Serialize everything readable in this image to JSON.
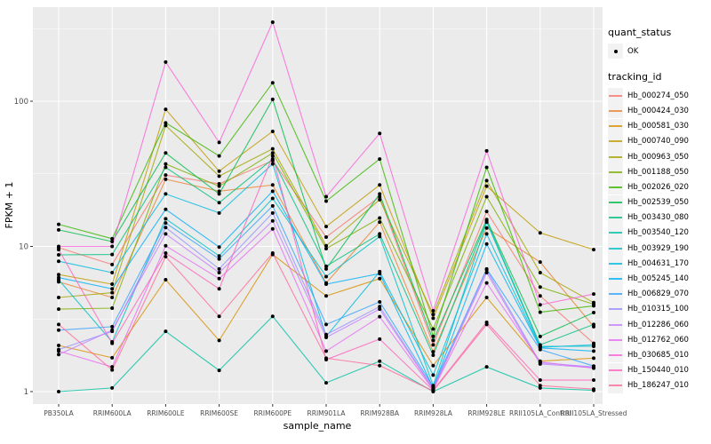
{
  "chart_data": {
    "type": "line",
    "xlabel": "sample_name",
    "ylabel": "FPKM + 1",
    "yscale": "log10",
    "yticks": [
      1,
      10,
      100
    ],
    "ytick_labels": [
      "1",
      "10",
      "100"
    ],
    "yminor": [
      3.162,
      31.62,
      316.2
    ],
    "ylim": [
      0.82,
      450
    ],
    "grid": true,
    "panel_bg": "#EBEBEB",
    "grid_color": "#FFFFFF",
    "point_color": "#000000",
    "point_label": "OK",
    "legend_position": "right",
    "categories": [
      "PB350LA",
      "RRIM600LA",
      "RRIM600LE",
      "RRIM600SE",
      "RRIM600PE",
      "RRIM901LA",
      "RRIM928BA",
      "RRIM928LA",
      "RRIM928LE",
      "RRII105LA_Control",
      "RRII105LA_Stressed"
    ],
    "series": [
      {
        "name": "Hb_000274_050",
        "color": "#F8766D",
        "values": [
          9.8,
          7.5,
          31,
          27,
          39,
          11.6,
          22,
          2.1,
          17.4,
          4.56,
          2.15
        ]
      },
      {
        "name": "Hb_000424_030",
        "color": "#EA8331",
        "values": [
          5.7,
          4.45,
          29,
          24,
          26.5,
          5.6,
          14.7,
          1.88,
          13.4,
          7.8,
          2.8
        ]
      },
      {
        "name": "Hb_000581_030",
        "color": "#D89000",
        "values": [
          2.08,
          1.71,
          5.9,
          2.25,
          8.8,
          4.56,
          6.0,
          1.51,
          4.45,
          1.62,
          1.7
        ]
      },
      {
        "name": "Hb_000740_090",
        "color": "#C09B00",
        "values": [
          6.4,
          5.5,
          88,
          33,
          62,
          13.7,
          26.5,
          3.2,
          26,
          12.4,
          9.5
        ]
      },
      {
        "name": "Hb_000963_050",
        "color": "#A3A500",
        "values": [
          4.45,
          4.8,
          68,
          30.5,
          47,
          10.1,
          21,
          3.4,
          28.4,
          6.6,
          4.1
        ]
      },
      {
        "name": "Hb_001188_050",
        "color": "#7CAE00",
        "values": [
          3.7,
          3.76,
          37,
          26,
          44,
          9.65,
          15.7,
          2.7,
          22,
          5.25,
          4.0
        ]
      },
      {
        "name": "Hb_002026_020",
        "color": "#39B600",
        "values": [
          14.2,
          11.3,
          71,
          42,
          134,
          20.5,
          40,
          2.4,
          35,
          3.52,
          3.9
        ]
      },
      {
        "name": "Hb_002539_050",
        "color": "#00BB4E",
        "values": [
          13,
          10.8,
          44,
          23,
          103,
          7.0,
          23,
          2.25,
          15.3,
          2.4,
          3.5
        ]
      },
      {
        "name": "Hb_003430_080",
        "color": "#00BF7D",
        "values": [
          8.75,
          8.8,
          35,
          20,
          40,
          7.3,
          12.2,
          1.78,
          15.0,
          2.1,
          2.9
        ]
      },
      {
        "name": "Hb_003540_120",
        "color": "#00C1A3",
        "values": [
          1.0,
          1.06,
          2.6,
          1.4,
          3.3,
          1.15,
          1.62,
          1.0,
          1.48,
          1.06,
          1.02
        ]
      },
      {
        "name": "Hb_003929_190",
        "color": "#00BFC4",
        "values": [
          5.9,
          2.2,
          15.5,
          8.6,
          21.4,
          6.2,
          11.7,
          1.1,
          14.7,
          2.05,
          2.05
        ]
      },
      {
        "name": "Hb_004631_170",
        "color": "#00BAE0",
        "values": [
          7.9,
          6.6,
          23,
          17,
          37,
          2.4,
          6.7,
          1.3,
          12.2,
          2.02,
          2.1
        ]
      },
      {
        "name": "Hb_005245_140",
        "color": "#00B0F6",
        "values": [
          6.1,
          5.1,
          18,
          9.9,
          24,
          5.5,
          6.5,
          1.06,
          10.4,
          2.0,
          1.9
        ]
      },
      {
        "name": "Hb_006829_070",
        "color": "#35A2FF",
        "values": [
          2.65,
          2.8,
          14.5,
          8.2,
          19,
          2.9,
          4.15,
          1.08,
          7.0,
          1.95,
          1.5
        ]
      },
      {
        "name": "Hb_010315_100",
        "color": "#9590FF",
        "values": [
          1.95,
          2.6,
          13.5,
          7.0,
          17,
          2.47,
          3.85,
          1.05,
          6.9,
          1.58,
          1.48
        ]
      },
      {
        "name": "Hb_012286_060",
        "color": "#C77CFF",
        "values": [
          1.8,
          2.65,
          12.2,
          6.6,
          15,
          2.36,
          3.7,
          1.04,
          6.6,
          1.55,
          1.46
        ]
      },
      {
        "name": "Hb_012762_060",
        "color": "#E76BF3",
        "values": [
          1.9,
          1.48,
          10.1,
          6.0,
          13.2,
          1.9,
          3.28,
          1.03,
          5.6,
          1.6,
          1.45
        ]
      },
      {
        "name": "Hb_030685_010",
        "color": "#FA62DB",
        "values": [
          10,
          10.0,
          186,
          52,
          350,
          22,
          60,
          3.6,
          45.5,
          3.96,
          4.7
        ]
      },
      {
        "name": "Hb_150440_010",
        "color": "#FF62BC",
        "values": [
          9.5,
          2.15,
          9.0,
          5.1,
          42,
          1.66,
          2.3,
          1.02,
          3.0,
          1.2,
          1.2
        ]
      },
      {
        "name": "Hb_186247_010",
        "color": "#FF6A98",
        "values": [
          2.9,
          1.41,
          8.5,
          3.3,
          9.0,
          1.7,
          1.51,
          1.01,
          2.9,
          1.1,
          1.04
        ]
      }
    ]
  },
  "axes": {
    "x_title": "sample_name",
    "y_title": "FPKM + 1"
  },
  "legend": {
    "quant_status": {
      "title": "quant_status",
      "items": [
        {
          "label": "OK"
        }
      ]
    },
    "tracking_id": {
      "title": "tracking_id"
    }
  }
}
